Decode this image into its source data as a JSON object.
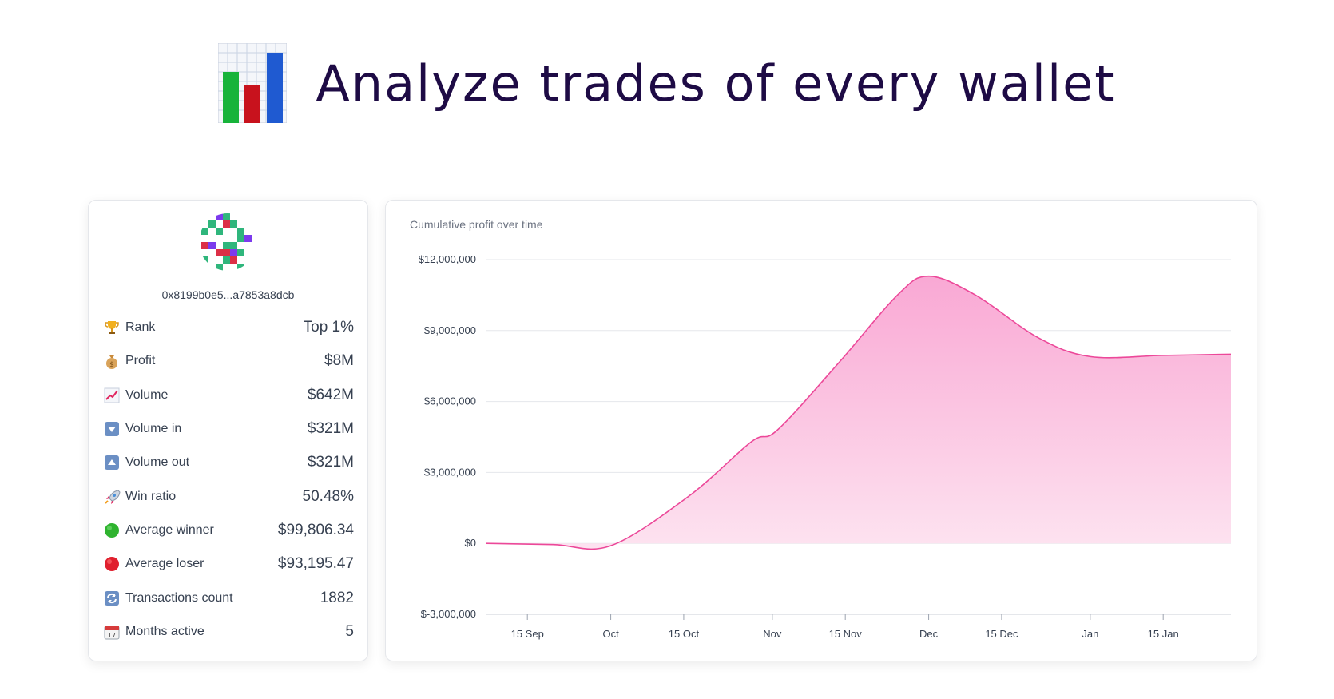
{
  "header": {
    "title": "Analyze trades of every wallet",
    "icon": "bar-chart-emoji-icon"
  },
  "profile": {
    "address": "0x8199b0e5...a7853a8dcb",
    "avatar_icon": "pixel-identicon",
    "stats": [
      {
        "icon": "trophy-icon",
        "label": "Rank",
        "value": "Top 1%"
      },
      {
        "icon": "money-bag-icon",
        "label": "Profit",
        "value": "$8M"
      },
      {
        "icon": "chart-increasing-icon",
        "label": "Volume",
        "value": "$642M"
      },
      {
        "icon": "down-arrow-button-icon",
        "label": "Volume in",
        "value": "$321M"
      },
      {
        "icon": "up-arrow-button-icon",
        "label": "Volume out",
        "value": "$321M"
      },
      {
        "icon": "rocket-icon",
        "label": "Win ratio",
        "value": "50.48%"
      },
      {
        "icon": "green-circle-icon",
        "label": "Average winner",
        "value": "$99,806.34"
      },
      {
        "icon": "red-circle-icon",
        "label": "Average loser",
        "value": "$93,195.47"
      },
      {
        "icon": "counterclockwise-arrows-icon",
        "label": "Transactions count",
        "value": "1882"
      },
      {
        "icon": "calendar-icon",
        "label": "Months active",
        "value": "5"
      }
    ]
  },
  "colors": {
    "title": "#1e0b45",
    "line": "#ec4899",
    "fill_top": "#f9a8d4",
    "fill_bottom": "#fde3f0",
    "grid": "#e5e7eb"
  },
  "chart_data": {
    "type": "area",
    "title": "Cumulative profit over time",
    "xlabel": "",
    "ylabel": "",
    "x_ticks": [
      "15 Sep",
      "Oct",
      "15 Oct",
      "Nov",
      "15 Nov",
      "Dec",
      "15 Dec",
      "Jan",
      "15 Jan"
    ],
    "y_ticks": [
      "$12,000,000",
      "$9,000,000",
      "$6,000,000",
      "$3,000,000",
      "$0",
      "$-3,000,000"
    ],
    "ylim": [
      -3000000,
      12000000
    ],
    "xlim": [
      "2022-09-07",
      "2023-01-28"
    ],
    "grid": true,
    "series": [
      {
        "x": [
          "2022-09-07",
          "2022-09-20",
          "2022-10-01",
          "2022-10-16",
          "2022-10-28",
          "2022-11-02",
          "2022-11-14",
          "2022-11-25",
          "2022-12-01",
          "2022-12-10",
          "2022-12-22",
          "2023-01-01",
          "2023-01-15",
          "2023-01-28"
        ],
        "values": [
          0,
          -50000,
          -100000,
          2000000,
          4300000,
          4800000,
          7700000,
          10500000,
          11300000,
          10500000,
          8700000,
          7900000,
          7950000,
          8000000
        ]
      }
    ]
  }
}
